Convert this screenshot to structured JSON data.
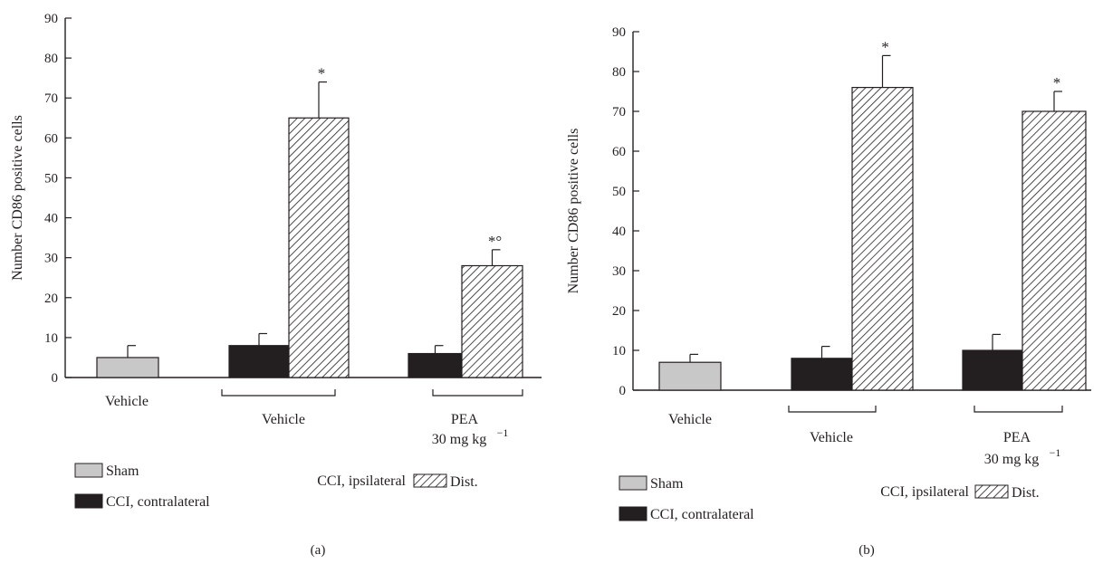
{
  "colors": {
    "sham": "#c8c8c8",
    "contralateral": "#231f20",
    "ipsilateral_hatch": "#231f20",
    "axis": "#231f20"
  },
  "chart_data": [
    {
      "type": "bar",
      "panel_label": "(a)",
      "ylabel": "Number CD86 positive cells",
      "ylim": [
        0,
        90
      ],
      "yticks": [
        0,
        10,
        20,
        30,
        40,
        50,
        60,
        70,
        80,
        90
      ],
      "groups": [
        {
          "label": "Vehicle",
          "sublabel": "",
          "bracket": false
        },
        {
          "label": "Vehicle",
          "sublabel": "",
          "bracket": true
        },
        {
          "label": "PEA",
          "sublabel": "30 mg kg",
          "sup": "−1",
          "bracket": true
        }
      ],
      "bars": [
        {
          "series": "sham",
          "group": 0,
          "value": 5,
          "error": 3,
          "annotation": ""
        },
        {
          "series": "contralateral",
          "group": 1,
          "value": 8,
          "error": 3,
          "annotation": ""
        },
        {
          "series": "ipsilateral",
          "group": 1,
          "value": 65,
          "error": 9,
          "annotation": "*"
        },
        {
          "series": "contralateral",
          "group": 2,
          "value": 6,
          "error": 2,
          "annotation": ""
        },
        {
          "series": "ipsilateral",
          "group": 2,
          "value": 28,
          "error": 4,
          "annotation": "*°"
        }
      ],
      "legend": {
        "sham": "Sham",
        "contralateral": "CCI, contralateral",
        "ipsilateral": "CCI, ipsilateral",
        "ipsilateral_suffix": "Dist."
      }
    },
    {
      "type": "bar",
      "panel_label": "(b)",
      "ylabel": "Number CD86 positive cells",
      "ylim": [
        0,
        90
      ],
      "yticks": [
        0,
        10,
        20,
        30,
        40,
        50,
        60,
        70,
        80,
        90
      ],
      "groups": [
        {
          "label": "Vehicle",
          "sublabel": "",
          "bracket": false
        },
        {
          "label": "Vehicle",
          "sublabel": "",
          "bracket": true
        },
        {
          "label": "PEA",
          "sublabel": "30 mg kg",
          "sup": "−1",
          "bracket": true
        }
      ],
      "bars": [
        {
          "series": "sham",
          "group": 0,
          "value": 7,
          "error": 2,
          "annotation": ""
        },
        {
          "series": "contralateral",
          "group": 1,
          "value": 8,
          "error": 3,
          "annotation": ""
        },
        {
          "series": "ipsilateral",
          "group": 1,
          "value": 76,
          "error": 8,
          "annotation": "*"
        },
        {
          "series": "contralateral",
          "group": 2,
          "value": 10,
          "error": 4,
          "annotation": ""
        },
        {
          "series": "ipsilateral",
          "group": 2,
          "value": 70,
          "error": 5,
          "annotation": "*"
        }
      ],
      "legend": {
        "sham": "Sham",
        "contralateral": "CCI, contralateral",
        "ipsilateral": "CCI, ipsilateral",
        "ipsilateral_suffix": "Dist."
      }
    }
  ]
}
